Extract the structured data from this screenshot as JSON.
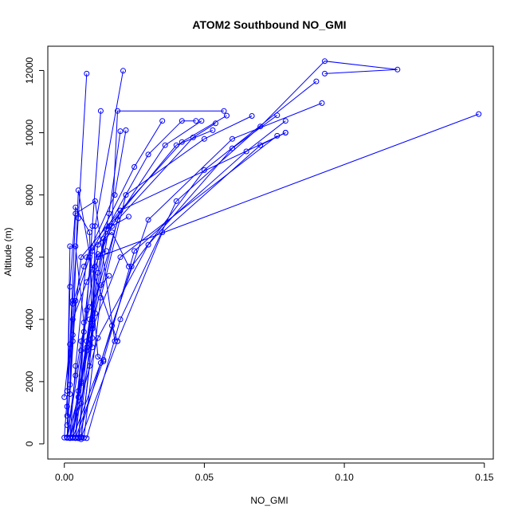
{
  "chart_data": {
    "type": "line",
    "title": "ATOM2 Southbound NO_GMI",
    "xlabel": "NO_GMI",
    "ylabel": "Altitude (m)",
    "xlim": [
      -0.0059,
      0.1532
    ],
    "ylim": [
      -488,
      12780
    ],
    "xticks": [
      0,
      0.05,
      0.1,
      0.15
    ],
    "xtick_labels": [
      "0.00",
      "0.05",
      "0.10",
      "0.15"
    ],
    "yticks": [
      0,
      2000,
      4000,
      6000,
      8000,
      10000,
      12000
    ],
    "ytick_labels": [
      "0",
      "2000",
      "4000",
      "6000",
      "8000",
      "10000",
      "12000"
    ],
    "grid": false,
    "legend": "none",
    "color": "#0000ff",
    "series": [
      {
        "points": [
          [
            0.001,
            200
          ],
          [
            0.002,
            1900
          ],
          [
            0.003,
            4600
          ],
          [
            0.005,
            7250
          ],
          [
            0.008,
            11900
          ]
        ]
      },
      {
        "points": [
          [
            0.002,
            180
          ],
          [
            0.006,
            1300
          ],
          [
            0.01,
            3400
          ],
          [
            0.011,
            7000
          ],
          [
            0.021,
            11990
          ]
        ]
      },
      {
        "points": [
          [
            0.004,
            190
          ],
          [
            0.005,
            1700
          ],
          [
            0.008,
            4300
          ],
          [
            0.01,
            7000
          ],
          [
            0.013,
            10700
          ]
        ]
      },
      {
        "points": [
          [
            0.006,
            220
          ],
          [
            0.009,
            2500
          ],
          [
            0.011,
            5700
          ],
          [
            0.017,
            7000
          ],
          [
            0.019,
            10700
          ],
          [
            0.057,
            10700
          ]
        ]
      },
      {
        "points": [
          [
            0.005,
            180
          ],
          [
            0.008,
            3000
          ],
          [
            0.012,
            5500
          ],
          [
            0.016,
            7400
          ],
          [
            0.02,
            10050
          ]
        ]
      },
      {
        "points": [
          [
            0.002,
            200
          ],
          [
            0.004,
            2500
          ],
          [
            0.008,
            6000
          ],
          [
            0.018,
            8000
          ],
          [
            0.022,
            10080
          ]
        ]
      },
      {
        "points": [
          [
            0.001,
            200
          ],
          [
            0.006,
            3000
          ],
          [
            0.01,
            6200
          ],
          [
            0.025,
            8900
          ],
          [
            0.035,
            10380
          ]
        ]
      },
      {
        "points": [
          [
            0.003,
            190
          ],
          [
            0.007,
            3600
          ],
          [
            0.012,
            6400
          ],
          [
            0.03,
            9300
          ],
          [
            0.042,
            10380
          ],
          [
            0.047,
            10380
          ]
        ]
      },
      {
        "points": [
          [
            0.004,
            200
          ],
          [
            0.008,
            3300
          ],
          [
            0.014,
            6600
          ],
          [
            0.036,
            9600
          ],
          [
            0.049,
            10380
          ]
        ]
      },
      {
        "points": [
          [
            0.005,
            180
          ],
          [
            0.01,
            3800
          ],
          [
            0.016,
            7000
          ],
          [
            0.04,
            9600
          ],
          [
            0.053,
            10080
          ]
        ]
      },
      {
        "points": [
          [
            0.006,
            150
          ],
          [
            0.011,
            4200
          ],
          [
            0.019,
            7200
          ],
          [
            0.046,
            9850
          ],
          [
            0.054,
            10300
          ]
        ]
      },
      {
        "points": [
          [
            0.003,
            210
          ],
          [
            0.009,
            4000
          ],
          [
            0.02,
            7500
          ],
          [
            0.042,
            9700
          ],
          [
            0.058,
            10550
          ]
        ]
      },
      {
        "points": [
          [
            0.007,
            190
          ],
          [
            0.013,
            4700
          ],
          [
            0.022,
            8000
          ],
          [
            0.05,
            9800
          ],
          [
            0.067,
            10540
          ]
        ]
      },
      {
        "points": [
          [
            0.002,
            200
          ],
          [
            0.012,
            3400
          ],
          [
            0.03,
            6400
          ],
          [
            0.06,
            9500
          ],
          [
            0.076,
            10560
          ]
        ]
      },
      {
        "points": [
          [
            0.004,
            180
          ],
          [
            0.014,
            2700
          ],
          [
            0.025,
            6200
          ],
          [
            0.065,
            9400
          ],
          [
            0.079,
            10380
          ]
        ]
      },
      {
        "points": [
          [
            0.006,
            200
          ],
          [
            0.019,
            3300
          ],
          [
            0.035,
            6800
          ],
          [
            0.07,
            9600
          ],
          [
            0.079,
            10000
          ]
        ]
      },
      {
        "points": [
          [
            0.001,
            210
          ],
          [
            0.005,
            1500
          ],
          [
            0.01,
            3700
          ],
          [
            0.02,
            6000
          ],
          [
            0.076,
            9900
          ]
        ]
      },
      {
        "points": [
          [
            0.003,
            190
          ],
          [
            0.013,
            2600
          ],
          [
            0.024,
            5700
          ],
          [
            0.05,
            8800
          ],
          [
            0.09,
            11650
          ]
        ]
      },
      {
        "points": [
          [
            0.005,
            200
          ],
          [
            0.017,
            3800
          ],
          [
            0.03,
            7200
          ],
          [
            0.06,
            9800
          ],
          [
            0.092,
            10950
          ]
        ]
      },
      {
        "points": [
          [
            0.008,
            180
          ],
          [
            0.02,
            4000
          ],
          [
            0.04,
            7800
          ],
          [
            0.07,
            10200
          ],
          [
            0.093,
            12300
          ],
          [
            0.119,
            12030
          ],
          [
            0.093,
            11900
          ]
        ]
      },
      {
        "points": [
          [
            0.002,
            200
          ],
          [
            0.008,
            3100
          ],
          [
            0.012,
            6000
          ],
          [
            0.148,
            10600
          ]
        ]
      },
      {
        "points": [
          [
            0.001,
            190
          ],
          [
            0.003,
            3500
          ],
          [
            0.006,
            6000
          ],
          [
            0.02,
            7500
          ],
          [
            0.079,
            10000
          ]
        ]
      },
      {
        "points": [
          [
            0.0,
            1500
          ],
          [
            0.002,
            3200
          ],
          [
            0.004,
            7400
          ],
          [
            0.011,
            7800
          ],
          [
            0.018,
            3300
          ]
        ]
      },
      {
        "points": [
          [
            0.001,
            600
          ],
          [
            0.003,
            3300
          ],
          [
            0.005,
            8150
          ],
          [
            0.01,
            5600
          ],
          [
            0.019,
            3300
          ]
        ]
      },
      {
        "points": [
          [
            0.002,
            1600
          ],
          [
            0.004,
            4600
          ],
          [
            0.009,
            6000
          ],
          [
            0.012,
            2800
          ],
          [
            0.014,
            2650
          ]
        ]
      },
      {
        "points": [
          [
            0.001,
            1200
          ],
          [
            0.002,
            5050
          ],
          [
            0.004,
            7600
          ],
          [
            0.009,
            6800
          ],
          [
            0.01,
            3100
          ]
        ]
      },
      {
        "points": [
          [
            0.001,
            900
          ],
          [
            0.002,
            6350
          ],
          [
            0.004,
            6350
          ],
          [
            0.007,
            3900
          ],
          [
            0.006,
            1950
          ]
        ]
      },
      {
        "points": [
          [
            0.001,
            1700
          ],
          [
            0.003,
            4500
          ],
          [
            0.007,
            5700
          ],
          [
            0.01,
            6300
          ],
          [
            0.017,
            6800
          ],
          [
            0.023,
            5700
          ]
        ]
      },
      {
        "points": [
          [
            0.0,
            200
          ],
          [
            0.003,
            4000
          ],
          [
            0.008,
            5200
          ],
          [
            0.012,
            6100
          ],
          [
            0.015,
            6200
          ]
        ]
      },
      {
        "points": [
          [
            0.001,
            200
          ],
          [
            0.004,
            2200
          ],
          [
            0.006,
            3300
          ],
          [
            0.009,
            4400
          ],
          [
            0.013,
            5100
          ],
          [
            0.016,
            5400
          ]
        ]
      },
      {
        "points": [
          [
            0.003,
            200
          ],
          [
            0.006,
            2000
          ],
          [
            0.01,
            4000
          ],
          [
            0.015,
            6900
          ],
          [
            0.023,
            7300
          ]
        ]
      }
    ]
  }
}
